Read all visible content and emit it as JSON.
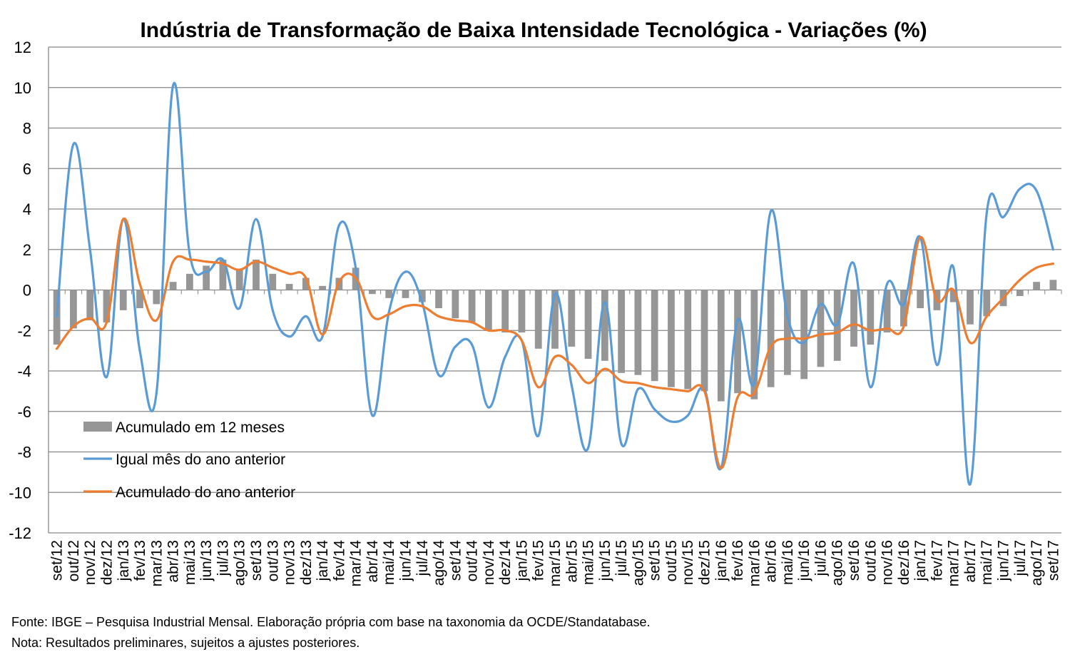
{
  "chart_data": {
    "type": "line",
    "title": "Indústria de Transformação de Baixa Intensidade Tecnológica - Variações (%)",
    "ylim": [
      -12,
      12
    ],
    "yticks": [
      12,
      10,
      8,
      6,
      4,
      2,
      0,
      -2,
      -4,
      -6,
      -8,
      -10,
      -12
    ],
    "grid": true,
    "legend_position": "bottom-left",
    "categories": [
      "set/12",
      "out/12",
      "nov/12",
      "dez/12",
      "jan/13",
      "fev/13",
      "mar/13",
      "abr/13",
      "mai/13",
      "jun/13",
      "jul/13",
      "ago/13",
      "set/13",
      "out/13",
      "nov/13",
      "dez/13",
      "jan/14",
      "fev/14",
      "mar/14",
      "abr/14",
      "mai/14",
      "jun/14",
      "jul/14",
      "ago/14",
      "set/14",
      "out/14",
      "nov/14",
      "dez/14",
      "jan/15",
      "fev/15",
      "mar/15",
      "abr/15",
      "mai/15",
      "jun/15",
      "jul/15",
      "ago/15",
      "set/15",
      "out/15",
      "nov/15",
      "dez/15",
      "jan/16",
      "fev/16",
      "mar/16",
      "abr/16",
      "mai/16",
      "jun/16",
      "jul/16",
      "ago/16",
      "set/16",
      "out/16",
      "nov/16",
      "dez/16",
      "jan/17",
      "fev/17",
      "mar/17",
      "abr/17",
      "mai/17",
      "jun/17",
      "jul/17",
      "ago/17",
      "set/17"
    ],
    "series": [
      {
        "name": "Acumulado em 12 meses",
        "kind": "bar",
        "color": "#969696",
        "values": [
          -2.7,
          -1.9,
          -1.5,
          -1.6,
          -1.0,
          -0.9,
          -0.7,
          0.4,
          0.8,
          1.2,
          1.5,
          1.0,
          1.5,
          0.8,
          0.3,
          0.6,
          0.2,
          0.6,
          1.1,
          -0.2,
          -0.4,
          -0.4,
          -0.6,
          -0.9,
          -1.4,
          -1.6,
          -2.0,
          -2.1,
          -2.1,
          -2.9,
          -2.9,
          -2.8,
          -3.4,
          -3.5,
          -4.1,
          -4.2,
          -4.5,
          -4.8,
          -4.9,
          -5.0,
          -5.5,
          -5.1,
          -5.4,
          -4.8,
          -4.2,
          -4.4,
          -3.8,
          -3.5,
          -2.8,
          -2.7,
          -2.1,
          -1.8,
          -0.9,
          -1.0,
          -0.6,
          -1.7,
          -1.3,
          -0.8,
          -0.3,
          0.4,
          0.5
        ]
      },
      {
        "name": "Igual mês do ano anterior",
        "kind": "line",
        "color": "#5B9BD5",
        "values": [
          -1.3,
          7.2,
          2.0,
          -4.3,
          3.5,
          -3.0,
          -5.1,
          10.1,
          1.8,
          0.9,
          1.5,
          -0.9,
          3.5,
          -1.0,
          -2.3,
          -1.3,
          -2.3,
          3.2,
          1.1,
          -6.2,
          -1.1,
          0.9,
          -0.6,
          -4.2,
          -2.8,
          -2.7,
          -5.8,
          -3.3,
          -2.5,
          -7.2,
          -0.2,
          -4.7,
          -7.8,
          -0.6,
          -7.6,
          -4.9,
          -5.9,
          -6.5,
          -6.2,
          -4.9,
          -8.8,
          -1.5,
          -4.6,
          3.9,
          -1.3,
          -2.6,
          -0.7,
          -1.7,
          1.3,
          -4.8,
          0.3,
          -0.7,
          2.6,
          -3.7,
          1.1,
          -9.6,
          3.8,
          3.6,
          5.0,
          4.9,
          2.0
        ]
      },
      {
        "name": "Acumulado do ano anterior",
        "kind": "line",
        "color": "#ED7D31",
        "values": [
          -2.9,
          -1.8,
          -1.4,
          -1.6,
          3.5,
          0.3,
          -1.5,
          1.4,
          1.5,
          1.4,
          1.3,
          1.0,
          1.4,
          1.1,
          0.8,
          0.6,
          -2.2,
          0.4,
          0.6,
          -1.3,
          -1.2,
          -0.8,
          -0.8,
          -1.3,
          -1.5,
          -1.6,
          -2.0,
          -2.0,
          -2.5,
          -4.8,
          -3.3,
          -3.7,
          -4.6,
          -3.9,
          -4.5,
          -4.6,
          -4.8,
          -4.9,
          -5.0,
          -5.0,
          -8.8,
          -5.3,
          -5.1,
          -2.8,
          -2.4,
          -2.4,
          -2.2,
          -2.1,
          -1.7,
          -2.0,
          -1.9,
          -1.8,
          2.6,
          -0.5,
          0.0,
          -2.6,
          -1.3,
          -0.4,
          0.5,
          1.1,
          1.3
        ]
      }
    ]
  },
  "notes": {
    "source": "Fonte: IBGE – Pesquisa Industrial Mensal. Elaboração própria com base na taxonomia da OCDE/Standatabase.",
    "note": "Nota: Resultados preliminares, sujeitos a ajustes posteriores."
  }
}
